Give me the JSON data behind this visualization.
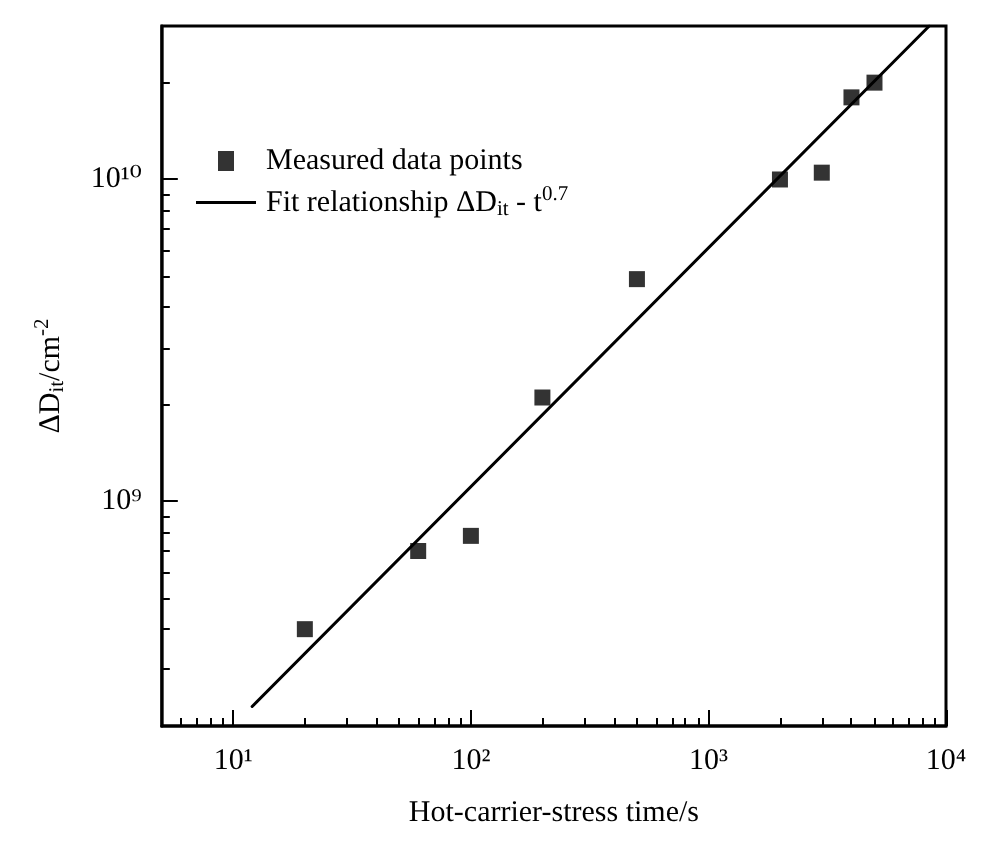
{
  "chart_data": {
    "type": "scatter",
    "xlabel": "Hot-carrier-stress time/s",
    "ylabel": "ΔD$_{it}$/cm$^{-2}$",
    "log": "xy",
    "grid": false,
    "legend": "top left",
    "xlim": [
      5,
      10000
    ],
    "ylim": [
      200000000,
      30000000000
    ],
    "xticks": [
      {
        "value": 10,
        "label": "10¹"
      },
      {
        "value": 100,
        "label": "10²"
      },
      {
        "value": 1000,
        "label": "10³"
      },
      {
        "value": 10000,
        "label": "10⁴"
      }
    ],
    "yticks": [
      {
        "value": 1000000000,
        "label": "10⁹"
      },
      {
        "value": 10000000000,
        "label": "10¹⁰"
      }
    ],
    "series": [
      {
        "name": "Measured data points",
        "marker": "square",
        "color": "#000000",
        "x": [
          20,
          60,
          100,
          200,
          500,
          2000,
          3000,
          4000,
          5000
        ],
        "values": [
          400000000,
          700000000,
          780000000,
          2100000000,
          4900000000,
          10000000000,
          10500000000,
          18000000000,
          20000000000
        ]
      },
      {
        "name": "Fit relationship ΔD$_{it}$ - t$^{0.7}$",
        "type": "line",
        "marker": "none",
        "line_style": "solid",
        "color": "#000000",
        "x": [
          12,
          8500
        ],
        "values": [
          230000000,
          30000000000
        ]
      }
    ]
  }
}
